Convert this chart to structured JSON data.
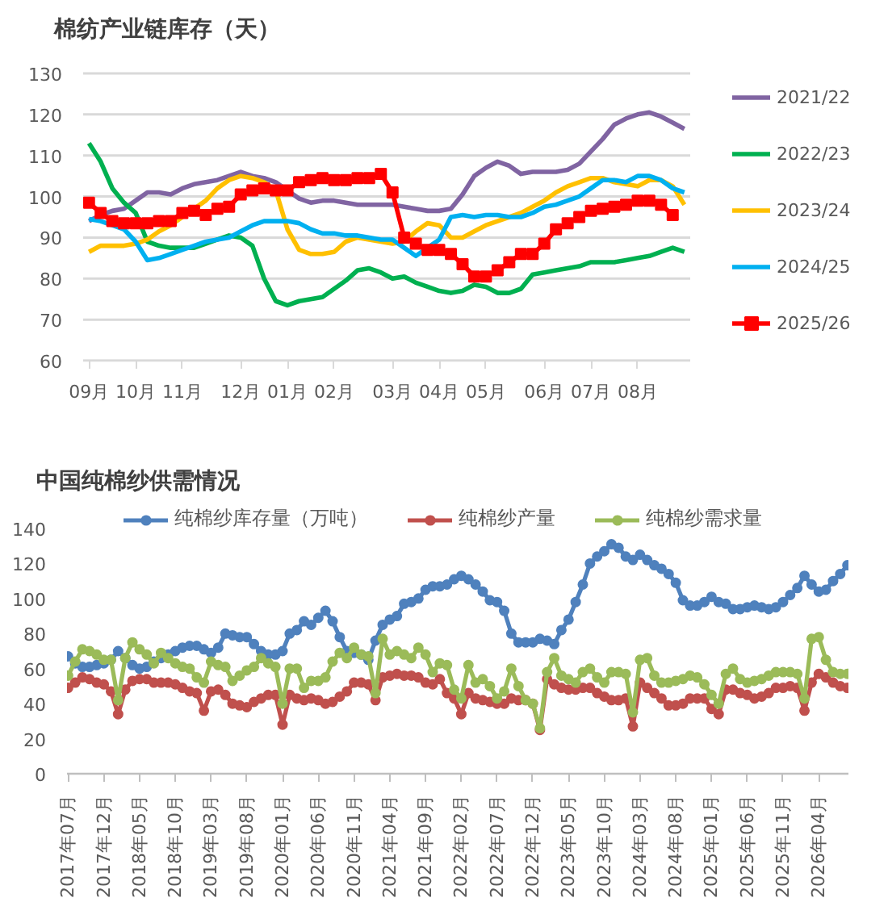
{
  "chart_data": [
    {
      "type": "line",
      "title": "棉纺产业链库存（天）",
      "legend": "right",
      "grid": "y",
      "marker": "none",
      "categories": [
        "09月",
        null,
        null,
        null,
        "10月",
        null,
        null,
        null,
        "11月",
        null,
        null,
        null,
        null,
        "12月",
        null,
        null,
        null,
        "01月",
        null,
        null,
        null,
        "02月",
        null,
        null,
        null,
        null,
        "03月",
        null,
        null,
        null,
        "04月",
        null,
        null,
        null,
        "05月",
        null,
        null,
        null,
        null,
        "06月",
        null,
        null,
        null,
        "07月",
        null,
        null,
        null,
        "08月",
        null,
        null,
        null,
        null
      ],
      "ylim": [
        60,
        130
      ],
      "yticks": [
        60,
        70,
        80,
        90,
        100,
        110,
        120,
        130
      ],
      "series": [
        {
          "name": "2021/22",
          "color": "#8064a2",
          "values": [
            94,
            95.5,
            96.5,
            97,
            99,
            101,
            101,
            100.5,
            102,
            103,
            103.5,
            104,
            105,
            106,
            105,
            104.5,
            103.5,
            101.5,
            99.5,
            98.5,
            99,
            99,
            98.5,
            98,
            98,
            98,
            98,
            97.5,
            97,
            96.5,
            96.5,
            97,
            100.5,
            105,
            107,
            108.5,
            107.5,
            105.5,
            106,
            106,
            106,
            106.5,
            108,
            111,
            114,
            117.5,
            119,
            120,
            120.5,
            119.5,
            118,
            116.5
          ]
        },
        {
          "name": "2022/23",
          "color": "#00b050",
          "values": [
            113,
            108.5,
            102,
            98.5,
            96,
            89,
            88,
            87.5,
            87.5,
            87.5,
            88.5,
            89.5,
            90.5,
            90,
            88,
            80,
            74.5,
            73.5,
            74.5,
            75,
            75.5,
            77.5,
            79.5,
            82,
            82.5,
            81.5,
            80,
            80.5,
            79,
            78,
            77,
            76.5,
            77,
            78.5,
            78,
            76.5,
            76.5,
            77.5,
            81,
            81.5,
            82,
            82.5,
            83,
            84,
            84,
            84,
            84.5,
            85,
            85.5,
            86.5,
            87.5,
            86.5
          ]
        },
        {
          "name": "2023/24",
          "color": "#ffc000",
          "values": [
            86.5,
            88,
            88,
            88,
            88.5,
            89.5,
            91.5,
            93,
            95,
            97,
            99,
            102,
            104,
            105,
            104.5,
            103.5,
            101.5,
            92,
            87,
            86,
            86,
            86.5,
            89,
            90,
            89.5,
            89,
            88.5,
            89,
            91.5,
            93.5,
            93,
            90,
            90,
            91.5,
            93,
            94,
            95,
            96,
            97.5,
            99,
            101,
            102.5,
            103.5,
            104.5,
            104.5,
            103.5,
            103,
            102.5,
            104,
            104,
            102.5,
            98
          ]
        },
        {
          "name": "2024/25",
          "color": "#00b0f0",
          "values": [
            94.5,
            94,
            93,
            92,
            89,
            84.5,
            85,
            86,
            87,
            88,
            89,
            89.5,
            90,
            91.5,
            93,
            94,
            94,
            94,
            93.5,
            92,
            91,
            91,
            90.5,
            90.5,
            90,
            89.5,
            89.5,
            87.5,
            85.5,
            87.5,
            89.5,
            95,
            95.5,
            95,
            95.5,
            95.5,
            95,
            95,
            96,
            97.5,
            98,
            99,
            100,
            102,
            104,
            104,
            103.5,
            105,
            105,
            104,
            102,
            101
          ]
        },
        {
          "name": "2025/26",
          "color": "#ff0000",
          "marker": "square",
          "values": [
            98.5,
            96,
            94,
            93.5,
            93.5,
            93.5,
            94,
            94,
            96,
            96.5,
            95.5,
            97,
            97.5,
            100.5,
            101.5,
            102,
            101.5,
            101.5,
            103.5,
            104,
            104.5,
            104,
            104,
            104.5,
            104.5,
            105.5,
            101,
            90,
            88.5,
            87,
            87,
            86,
            83.5,
            80.5,
            80.5,
            82,
            84,
            86,
            86,
            88.5,
            92,
            93.5,
            95,
            96.5,
            97,
            97.5,
            98,
            99,
            99,
            98,
            95.5,
            null
          ]
        }
      ]
    },
    {
      "type": "line",
      "title": "中国纯棉纱供需情况",
      "legend": "top",
      "marker": "circle",
      "categories": [
        "2017年07月",
        null,
        null,
        null,
        null,
        "2017年12月",
        null,
        null,
        null,
        null,
        "2018年05月",
        null,
        null,
        null,
        null,
        "2018年10月",
        null,
        null,
        null,
        null,
        "2019年03月",
        null,
        null,
        null,
        null,
        "2019年08月",
        null,
        null,
        null,
        null,
        "2020年01月",
        null,
        null,
        null,
        null,
        "2020年06月",
        null,
        null,
        null,
        null,
        "2020年11月",
        null,
        null,
        null,
        null,
        "2021年04月",
        null,
        null,
        null,
        null,
        "2021年09月",
        null,
        null,
        null,
        null,
        "2022年02月",
        null,
        null,
        null,
        null,
        "2022年07月",
        null,
        null,
        null,
        null,
        "2022年12月",
        null,
        null,
        null,
        null,
        "2023年05月",
        null,
        null,
        null,
        null,
        "2023年10月",
        null,
        null,
        null,
        null,
        "2024年03月",
        null,
        null,
        null,
        null,
        "2024年08月",
        null,
        null,
        null,
        null,
        "2025年01月",
        null,
        null,
        null,
        null,
        "2025年06月",
        null,
        null,
        null,
        null,
        "2025年11月",
        null,
        null,
        null,
        null,
        "2026年04月",
        null,
        null,
        null,
        null
      ],
      "ylim": [
        0,
        140
      ],
      "yticks": [
        0,
        20,
        40,
        60,
        80,
        100,
        120,
        140
      ],
      "series": [
        {
          "name": "纯棉纱库存量（万吨）",
          "color": "#4f81bd",
          "values": [
            67,
            63,
            61,
            61,
            62,
            63,
            65,
            70,
            66,
            62,
            60,
            61,
            64,
            66,
            68,
            70,
            72,
            73,
            73,
            71,
            69,
            72,
            80,
            79,
            78,
            78,
            74,
            70,
            68,
            68,
            70,
            80,
            82,
            87,
            85,
            89,
            93,
            87,
            78,
            70,
            69,
            68,
            65,
            76,
            85,
            88,
            90,
            97,
            98,
            100,
            105,
            107,
            107,
            108,
            111,
            113,
            111,
            108,
            104,
            99,
            98,
            93,
            80,
            75,
            75,
            75,
            77,
            76,
            74,
            82,
            88,
            98,
            108,
            120,
            124,
            127,
            131,
            129,
            124,
            122,
            125,
            122,
            119,
            117,
            114,
            109,
            99,
            96,
            96,
            98,
            101,
            98,
            97,
            94,
            94,
            95,
            96,
            95,
            94,
            95,
            98,
            102,
            106,
            113,
            108,
            104,
            105,
            110,
            114,
            119
          ]
        },
        {
          "name": "纯棉纱产量",
          "color": "#c0504d",
          "values": [
            49,
            52,
            55,
            54,
            52,
            51,
            47,
            34,
            48,
            53,
            54,
            54,
            52,
            52,
            52,
            51,
            49,
            47,
            46,
            36,
            47,
            48,
            45,
            40,
            39,
            38,
            41,
            43,
            45,
            45,
            28,
            45,
            43,
            42,
            43,
            42,
            40,
            41,
            44,
            47,
            52,
            52,
            51,
            42,
            55,
            56,
            57,
            56,
            56,
            55,
            52,
            51,
            54,
            46,
            43,
            34,
            46,
            43,
            42,
            41,
            40,
            40,
            43,
            42,
            42,
            40,
            25,
            54,
            51,
            49,
            48,
            48,
            49,
            49,
            46,
            44,
            42,
            42,
            43,
            27,
            52,
            49,
            46,
            43,
            39,
            39,
            40,
            43,
            43,
            43,
            37,
            34,
            48,
            48,
            46,
            45,
            43,
            44,
            46,
            49,
            49,
            50,
            49,
            36,
            52,
            57,
            55,
            52,
            50,
            49
          ]
        },
        {
          "name": "纯棉纱需求量",
          "color": "#9bbb59",
          "values": [
            56,
            64,
            71,
            70,
            68,
            65,
            65,
            42,
            66,
            75,
            71,
            68,
            63,
            69,
            66,
            63,
            61,
            60,
            55,
            52,
            64,
            62,
            61,
            53,
            56,
            59,
            61,
            66,
            63,
            61,
            40,
            60,
            60,
            49,
            53,
            53,
            55,
            64,
            69,
            66,
            72,
            68,
            67,
            46,
            77,
            68,
            70,
            68,
            66,
            72,
            68,
            58,
            63,
            62,
            48,
            43,
            62,
            52,
            54,
            50,
            43,
            47,
            60,
            50,
            42,
            40,
            26,
            58,
            66,
            56,
            54,
            52,
            58,
            60,
            55,
            52,
            58,
            58,
            57,
            35,
            65,
            66,
            56,
            52,
            52,
            53,
            54,
            56,
            55,
            51,
            45,
            40,
            57,
            60,
            54,
            52,
            53,
            54,
            56,
            58,
            58,
            58,
            57,
            43,
            77,
            78,
            65,
            58,
            57,
            57
          ]
        }
      ]
    }
  ]
}
